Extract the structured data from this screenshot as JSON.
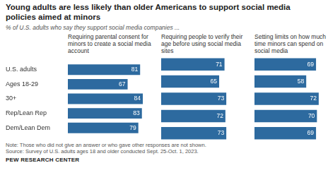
{
  "title": "Young adults are less likely than older Americans to support social media policies aimed at minors",
  "subtitle": "% of U.S. adults who say they support social media companies ...",
  "note": "Note: Those who did not give an answer or who gave other responses are not shown.",
  "source": "Source: Survey of U.S. adults ages 18 and older conducted Sept. 25-Oct. 1, 2023.",
  "credit": "PEW RESEARCH CENTER",
  "chart_data": [
    {
      "type": "bar",
      "orientation": "horizontal",
      "title": "Requiring parental consent for minors to create a social media account",
      "categories": [
        "U.S. adults",
        "Ages 18-29",
        "30+",
        "Rep/Lean Rep",
        "Dem/Lean Dem"
      ],
      "values": [
        81,
        67,
        84,
        83,
        79
      ],
      "color": "#2d6a9f",
      "data_labels": true,
      "tick_labels": "y",
      "grid": false
    },
    {
      "type": "bar",
      "orientation": "horizontal",
      "title": "Requiring people to verify their age before using social media sites",
      "categories": [
        "U.S. adults",
        "Ages 18-29",
        "30+",
        "Rep/Lean Rep",
        "Dem/Lean Dem"
      ],
      "values": [
        71,
        65,
        73,
        72,
        73
      ],
      "color": "#2d6a9f",
      "data_labels": true,
      "tick_labels": false,
      "grid": false
    },
    {
      "type": "bar",
      "orientation": "horizontal",
      "title": "Setting limits on how much time minors can spend on social media",
      "categories": [
        "U.S. adults",
        "Ages 18-29",
        "30+",
        "Rep/Lean Rep",
        "Dem/Lean Dem"
      ],
      "values": [
        69,
        58,
        72,
        70,
        69
      ],
      "color": "#2d6a9f",
      "data_labels": true,
      "tick_labels": false,
      "grid": false
    }
  ]
}
